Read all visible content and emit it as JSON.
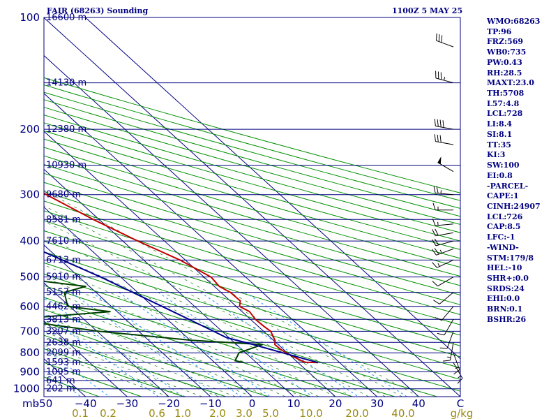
{
  "header": {
    "title": "FAIR (68263) Sounding",
    "datetime": "1100Z  5 MAY 25"
  },
  "indices": [
    "WMO:68263",
    "TP:96",
    "FRZ:569",
    "WB0:735",
    "PW:0.43",
    "RH:28.5",
    "MAXT:23.0",
    "TH:5708",
    "L57:4.8",
    "LCL:728",
    "LI:8.4",
    "SI:8.1",
    "TT:35",
    "KI:3",
    "SW:100",
    "EI:0.8",
    "-PARCEL-",
    "CAPE:1",
    "CINH:24907",
    "LCL:726",
    "CAP:8.5",
    "LFC:-1",
    "-WIND-",
    "STM:179/8",
    "HEL:-10",
    "SHR+:0.0",
    "SRDS:24",
    "EHI:0.0",
    "BRN:0.1",
    "BSHR:26"
  ],
  "chart_data": {
    "type": "line",
    "subtype": "skew-T log-P sounding",
    "x_axis": {
      "unit_label": "C",
      "ticks": [
        -50,
        -40,
        -30,
        -20,
        -10,
        0,
        10,
        20,
        30,
        40
      ],
      "tick_labels": [
        "-50",
        "−40",
        "−30",
        "−20",
        "−10",
        "0",
        "10",
        "20",
        "30",
        "40"
      ],
      "range": [
        -50,
        50
      ]
    },
    "y_axis": {
      "unit_label": "mb",
      "scale": "log",
      "range": [
        100,
        1050
      ],
      "ticks": [
        100,
        200,
        300,
        400,
        500,
        600,
        700,
        800,
        900,
        1000
      ],
      "tick_labels": [
        "100",
        "200",
        "300",
        "400",
        "500",
        "600",
        "700",
        "800",
        "900",
        "1000"
      ]
    },
    "mixing_ratio_axis": {
      "unit_label": "g/kg",
      "ticks": [
        0.1,
        0.2,
        0.6,
        1.0,
        2.0,
        3.0,
        5.0,
        10.0,
        20.0,
        40.0
      ],
      "tick_labels": [
        "0.1",
        "0.2",
        "0.6",
        "1.0",
        "2.0",
        "3.0",
        "5.0",
        "10.0",
        "20.0",
        "40.0"
      ]
    },
    "height_labels": [
      {
        "p": 100,
        "label": "16600 m"
      },
      {
        "p": 150,
        "label": "14130 m"
      },
      {
        "p": 200,
        "label": "12380 m"
      },
      {
        "p": 250,
        "label": "10930 m"
      },
      {
        "p": 300,
        "label": "9680 m"
      },
      {
        "p": 350,
        "label": "8581 m"
      },
      {
        "p": 400,
        "label": "7610 m"
      },
      {
        "p": 450,
        "label": "6713 m"
      },
      {
        "p": 500,
        "label": "5910 m"
      },
      {
        "p": 550,
        "label": "5157 m"
      },
      {
        "p": 600,
        "label": "4462 m"
      },
      {
        "p": 650,
        "label": "3813 m"
      },
      {
        "p": 700,
        "label": "3207 m"
      },
      {
        "p": 750,
        "label": "2638 m"
      },
      {
        "p": 800,
        "label": "2099 m"
      },
      {
        "p": 850,
        "label": "1593 m"
      },
      {
        "p": 900,
        "label": "1095 m"
      },
      {
        "p": 950,
        "label": "641 m"
      },
      {
        "p": 1000,
        "label": "202 m"
      }
    ],
    "series": [
      {
        "color": "#c00000",
        "role": "temperature",
        "points": [
          [
            850,
            24.8
          ],
          [
            848,
            22
          ],
          [
            845,
            21.5
          ],
          [
            800,
            19.7
          ],
          [
            780,
            19.3
          ],
          [
            760,
            19.2
          ],
          [
            742,
            20.3
          ],
          [
            700,
            21.7
          ],
          [
            680,
            21.4
          ],
          [
            650,
            21.2
          ],
          [
            620,
            21.8
          ],
          [
            600,
            20.8
          ],
          [
            580,
            22.4
          ],
          [
            550,
            22.3
          ],
          [
            530,
            21.2
          ],
          [
            500,
            21.7
          ],
          [
            450,
            18.7
          ],
          [
            400,
            13.6
          ],
          [
            350,
            8.6
          ],
          [
            300,
            3.9
          ],
          [
            250,
            -2.5
          ],
          [
            235,
            -6.9
          ],
          [
            220,
            -9.4
          ],
          [
            200,
            -13.5
          ],
          [
            180,
            -18.6
          ],
          [
            165,
            -21.5
          ],
          [
            150,
            -26.1
          ],
          [
            120,
            -36.0
          ],
          [
            100,
            -45.3
          ]
        ]
      },
      {
        "color": "#004000",
        "role": "dewpoint",
        "points": [
          [
            850,
            7.0
          ],
          [
            840,
            5.4
          ],
          [
            800,
            8.4
          ],
          [
            760,
            16.2
          ],
          [
            740,
            0.3
          ],
          [
            700,
            -19.6
          ],
          [
            650,
            -37.1
          ],
          [
            620,
            -11.7
          ],
          [
            600,
            -20.5
          ],
          [
            550,
            -17.6
          ],
          [
            530,
            -10.9
          ],
          [
            500,
            -26.9
          ],
          [
            450,
            -23.8
          ],
          [
            400,
            -24.9
          ],
          [
            370,
            -18.6
          ],
          [
            330,
            -23.8
          ],
          [
            300,
            -27.8
          ],
          [
            270,
            -33.3
          ],
          [
            250,
            -35.3
          ],
          [
            230,
            -32.1
          ],
          [
            215,
            -46.2
          ],
          [
            200,
            -43.7
          ],
          [
            180,
            -44.8
          ],
          [
            165,
            -48.9
          ],
          [
            150,
            -56.6
          ],
          [
            140,
            -59.1
          ],
          [
            120,
            -63.3
          ],
          [
            100,
            -64.6
          ]
        ]
      },
      {
        "color": "#000090",
        "role": "parcel",
        "points": [
          [
            850,
            24.8
          ],
          [
            800,
            18.9
          ],
          [
            760,
            14.0
          ],
          [
            728,
            9.4
          ],
          [
            700,
            8.0
          ],
          [
            600,
            2.2
          ],
          [
            500,
            -4.8
          ],
          [
            400,
            -14.9
          ],
          [
            300,
            -29.2
          ],
          [
            250,
            -39.2
          ],
          [
            200,
            -51.1
          ],
          [
            150,
            -64.2
          ],
          [
            120,
            -74.3
          ],
          [
            100,
            -81.9
          ]
        ]
      }
    ],
    "wind_barbs": [
      {
        "p": 120,
        "dir": 290,
        "kt": 30
      },
      {
        "p": 150,
        "dir": 285,
        "kt": 35
      },
      {
        "p": 200,
        "dir": 280,
        "kt": 40
      },
      {
        "p": 220,
        "dir": 280,
        "kt": 30
      },
      {
        "p": 260,
        "dir": 300,
        "kt": 50
      },
      {
        "p": 300,
        "dir": 275,
        "kt": 25
      },
      {
        "p": 330,
        "dir": 270,
        "kt": 15
      },
      {
        "p": 360,
        "dir": 265,
        "kt": 15
      },
      {
        "p": 380,
        "dir": 260,
        "kt": 20
      },
      {
        "p": 400,
        "dir": 255,
        "kt": 20
      },
      {
        "p": 420,
        "dir": 250,
        "kt": 25
      },
      {
        "p": 450,
        "dir": 245,
        "kt": 15
      },
      {
        "p": 500,
        "dir": 240,
        "kt": 10
      },
      {
        "p": 550,
        "dir": 230,
        "kt": 10
      },
      {
        "p": 600,
        "dir": 220,
        "kt": 10
      },
      {
        "p": 650,
        "dir": 210,
        "kt": 10
      },
      {
        "p": 700,
        "dir": 200,
        "kt": 10
      },
      {
        "p": 750,
        "dir": 190,
        "kt": 15
      },
      {
        "p": 800,
        "dir": 160,
        "kt": 15
      },
      {
        "p": 850,
        "dir": 150,
        "kt": 15
      }
    ],
    "colors": {
      "background": "#ffffff",
      "isobar": "#000080",
      "isotherm": "#000080",
      "dry_adiabat": "#009000",
      "moist_adiabat": "#2e8b2e",
      "mixing_ratio": "#1e90ff",
      "axis_text": "#000080",
      "mixing_text": "#9a8a10"
    }
  }
}
